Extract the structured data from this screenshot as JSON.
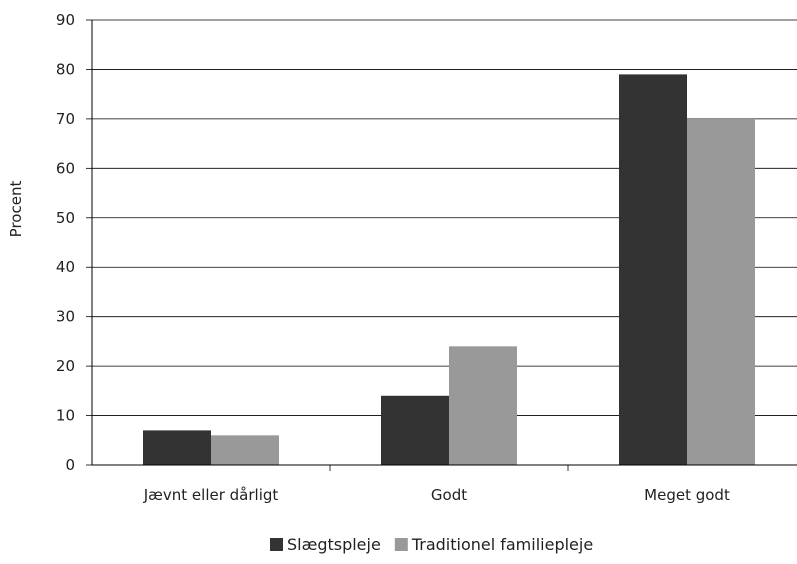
{
  "chart_data": {
    "type": "bar",
    "title": "",
    "xlabel": "",
    "ylabel": "Procent",
    "ylim": [
      0,
      90
    ],
    "yticks": [
      0,
      10,
      20,
      30,
      40,
      50,
      60,
      70,
      80,
      90
    ],
    "grid": true,
    "legend_position": "bottom",
    "categories": [
      "Jævnt eller dårligt",
      "Godt",
      "Meget godt"
    ],
    "series": [
      {
        "name": "Slægtspleje",
        "values": [
          7,
          14,
          79
        ],
        "color": "#333333"
      },
      {
        "name": "Traditionel familiepleje",
        "values": [
          6,
          24,
          70
        ],
        "color": "#999999"
      }
    ]
  }
}
